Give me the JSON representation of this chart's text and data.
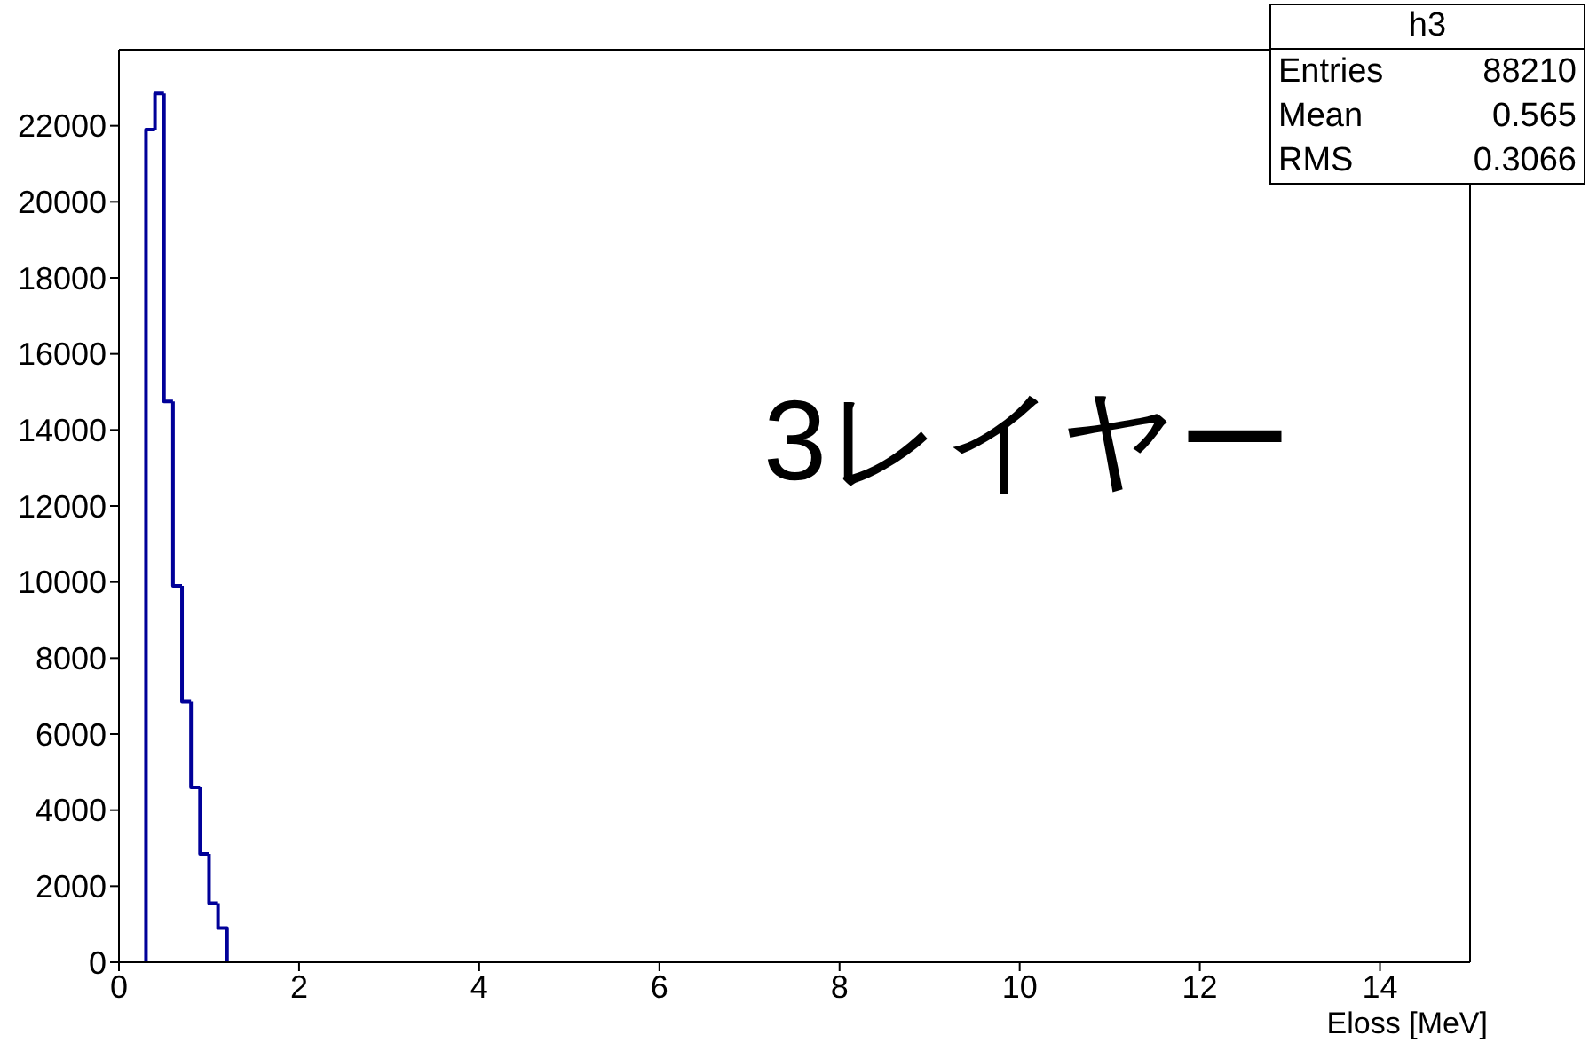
{
  "chart_data": {
    "type": "histogram",
    "xlabel": "Eloss [MeV]",
    "bins": [
      0.3,
      0.4,
      0.5,
      0.6,
      0.7,
      0.8,
      0.9,
      1.0,
      1.1,
      1.2
    ],
    "values": [
      21900,
      22850,
      14750,
      9900,
      6850,
      4600,
      2850,
      1550,
      900
    ],
    "color": "#000099",
    "xlim": [
      0,
      15
    ],
    "xticks": [
      0,
      2,
      4,
      6,
      8,
      10,
      12,
      14
    ],
    "ylim": [
      0,
      24000
    ],
    "yticks": [
      0,
      2000,
      4000,
      6000,
      8000,
      10000,
      12000,
      14000,
      16000,
      18000,
      20000,
      22000
    ],
    "grid": false,
    "annotations": [
      "3レイヤー",
      "h3",
      "Entries 88210",
      "Mean 0.565",
      "RMS 0.3066"
    ]
  }
}
